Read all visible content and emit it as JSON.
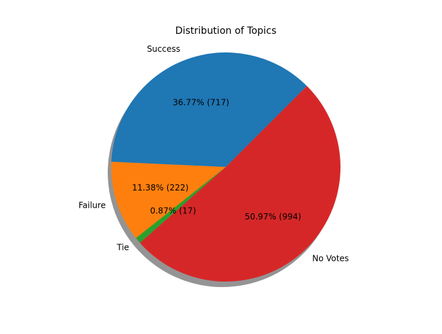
{
  "chart_data": {
    "type": "pie",
    "title": "Distribution of Topics",
    "slices": [
      {
        "label": "Success",
        "value": 717,
        "percent_label": "36.77% (717)",
        "color": "#1f77b4"
      },
      {
        "label": "Failure",
        "value": 222,
        "percent_label": "11.38% (222)",
        "color": "#ff7f0e"
      },
      {
        "label": "Tie",
        "value": 17,
        "percent_label": "0.87% (17)",
        "color": "#2ca02c"
      },
      {
        "label": "No Votes",
        "value": 994,
        "percent_label": "50.97% (994)",
        "color": "#d62728"
      }
    ],
    "start_angle_deg": 45,
    "direction": "counterclockwise",
    "shadow": true,
    "legend": "none"
  }
}
